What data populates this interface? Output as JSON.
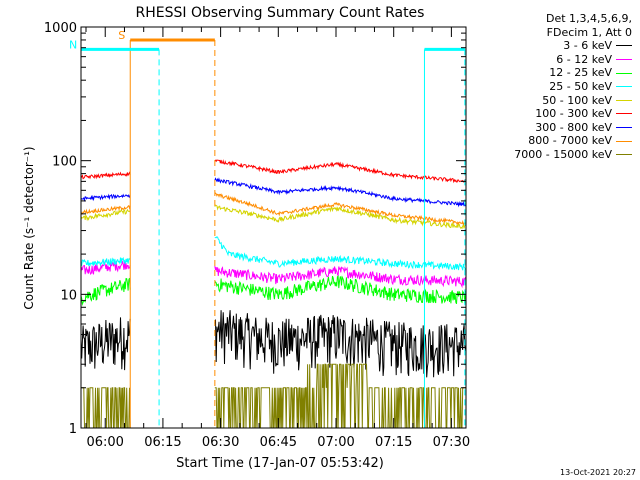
{
  "chart_data": {
    "type": "line",
    "title": "RHESSI Observing Summary Count Rates",
    "xlabel": "Start Time (17-Jan-07 05:53:42)",
    "ylabel": "Count Rate (s⁻¹ detector⁻¹)",
    "yscale": "log",
    "ylim": [
      1,
      1000
    ],
    "xlim": [
      -6.3,
      93.8
    ],
    "x_units": "minutes after 06:00 UT",
    "y_ticks": [
      {
        "value": 1,
        "label": "1"
      },
      {
        "value": 10,
        "label": "10"
      },
      {
        "value": 100,
        "label": "100"
      },
      {
        "value": 1000,
        "label": "1000"
      }
    ],
    "x_ticks": [
      {
        "value": 0,
        "label": "06:00"
      },
      {
        "value": 15,
        "label": "06:15"
      },
      {
        "value": 30,
        "label": "06:30"
      },
      {
        "value": 45,
        "label": "06:45"
      },
      {
        "value": 60,
        "label": "07:00"
      },
      {
        "value": 75,
        "label": "07:15"
      },
      {
        "value": 90,
        "label": "07:30"
      }
    ],
    "grid": false,
    "legend_position": "top-right, outside plot",
    "legend_header": [
      "Det 1,3,4,5,6,9,",
      "FDecim 1, Att 0"
    ],
    "segments": [
      [
        -6.3,
        6.5
      ],
      [
        28.5,
        93.8
      ]
    ],
    "series": [
      {
        "name": "3 - 6 keV",
        "color": "#000000",
        "noise": 0.45,
        "x": [
          -6.3,
          6.5,
          28.5,
          45,
          60,
          75,
          93.8
        ],
        "values": [
          4.0,
          5.0,
          5.5,
          4.5,
          5.0,
          4.3,
          4.2
        ]
      },
      {
        "name": "6 - 12 keV",
        "color": "#ff00ff",
        "noise": 0.09,
        "x": [
          -6.3,
          6.5,
          28.5,
          45,
          60,
          75,
          93.8
        ],
        "values": [
          15,
          17,
          15,
          13,
          15,
          13,
          12.5
        ]
      },
      {
        "name": "12 - 25 keV",
        "color": "#00ff00",
        "noise": 0.12,
        "x": [
          -6.3,
          6.5,
          28.5,
          45,
          60,
          75,
          93.8
        ],
        "values": [
          9.5,
          12,
          12,
          10,
          12.5,
          10,
          9.5
        ]
      },
      {
        "name": "25 - 50 keV",
        "color": "#00ffff",
        "noise": 0.06,
        "x": [
          -6.3,
          6.5,
          28.5,
          32,
          45,
          60,
          75,
          93.8
        ],
        "values": [
          17,
          18,
          27,
          20,
          17,
          18.5,
          17,
          16
        ]
      },
      {
        "name": "50 - 100 keV",
        "color": "#d4d400",
        "noise": 0.04,
        "x": [
          -6.3,
          6.5,
          28.5,
          45,
          60,
          75,
          93.8
        ],
        "values": [
          37,
          42,
          45,
          36,
          44,
          36,
          32
        ]
      },
      {
        "name": "100 - 300 keV",
        "color": "#ff0000",
        "noise": 0.03,
        "x": [
          -6.3,
          6.5,
          28.5,
          45,
          60,
          75,
          93.8
        ],
        "values": [
          75,
          80,
          100,
          82,
          94,
          78,
          70
        ]
      },
      {
        "name": "300 - 800 keV",
        "color": "#0000ff",
        "noise": 0.03,
        "x": [
          -6.3,
          6.5,
          28.5,
          45,
          60,
          75,
          93.8
        ],
        "values": [
          52,
          55,
          72,
          58,
          63,
          52,
          47
        ]
      },
      {
        "name": "800 - 7000 keV",
        "color": "#ff8c00",
        "noise": 0.03,
        "x": [
          -6.3,
          6.5,
          28.5,
          45,
          60,
          75,
          93.8
        ],
        "values": [
          41,
          45,
          56,
          40,
          47,
          39,
          34
        ]
      },
      {
        "name": "7000 - 15000 keV",
        "color": "#808000",
        "noise": 0.0,
        "quantized": true,
        "x": [
          -6.3,
          6.5,
          28.5,
          45,
          60,
          75,
          93.8
        ],
        "values": [
          1.5,
          1.8,
          2.0,
          2.0,
          2.6,
          1.8,
          1.7
        ]
      }
    ],
    "annotations": [
      {
        "label": "S",
        "kind": "SAA",
        "color": "#ff8c00",
        "y": 800,
        "start": 6.5,
        "end": 28.5,
        "start_style": "solid",
        "end_style": "dashed"
      },
      {
        "label": "N",
        "kind": "Night",
        "color": "#00ffff",
        "y": 680,
        "start": -6.3,
        "end": 14,
        "start_style": "solid",
        "end_style": "dashed"
      },
      {
        "label": "",
        "kind": "Night",
        "color": "#00ffff",
        "y": 680,
        "start": 83,
        "end": 93.5,
        "start_style": "solid",
        "end_style": "dashed"
      }
    ]
  },
  "footer": {
    "timestamp": "13-Oct-2021 20:27"
  }
}
